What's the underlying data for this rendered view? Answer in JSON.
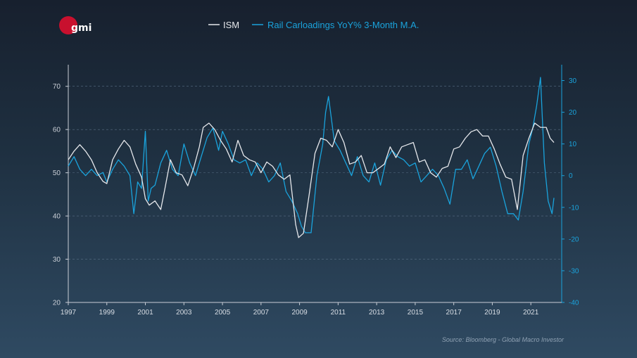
{
  "logo": {
    "text": "gmi",
    "color": "#c8102e"
  },
  "source": "Source: Bloomberg - Global Macro Investor",
  "colors": {
    "ism": "#e6e8ec",
    "rail": "#1aa3dc",
    "axis_left": "#c9ced6",
    "axis_right": "#1aa3dc",
    "grid": "#5a6f85"
  },
  "chart_data": {
    "type": "line",
    "title": "",
    "legend": [
      "ISM",
      "Rail Carloadings YoY% 3-Month M.A."
    ],
    "legend_position": "top-center",
    "x_range": [
      1997,
      2022.6
    ],
    "x_ticks": [
      "1997",
      "1999",
      "2001",
      "2003",
      "2005",
      "2007",
      "2009",
      "2011",
      "2013",
      "2015",
      "2017",
      "2019",
      "2021"
    ],
    "y_left": {
      "range": [
        20,
        75
      ],
      "ticks": [
        "20",
        "30",
        "40",
        "50",
        "60",
        "70"
      ]
    },
    "y_right": {
      "range": [
        -40,
        35
      ],
      "ticks": [
        "-40",
        "-30",
        "-20",
        "-10",
        "0",
        "10",
        "20",
        "30"
      ]
    },
    "grid": "horizontal dashed at left-axis ticks",
    "series": [
      {
        "name": "ISM",
        "axis": "left",
        "x": [
          1997.0,
          1997.3,
          1997.6,
          1997.9,
          1998.2,
          1998.5,
          1998.8,
          1999.0,
          1999.3,
          1999.6,
          1999.9,
          2000.2,
          2000.5,
          2000.8,
          2001.0,
          2001.2,
          2001.5,
          2001.8,
          2002.0,
          2002.3,
          2002.6,
          2002.9,
          2003.2,
          2003.5,
          2003.8,
          2004.0,
          2004.3,
          2004.6,
          2004.9,
          2005.2,
          2005.5,
          2005.8,
          2006.1,
          2006.4,
          2006.7,
          2007.0,
          2007.3,
          2007.6,
          2007.9,
          2008.2,
          2008.5,
          2008.8,
          2008.95,
          2009.2,
          2009.5,
          2009.8,
          2010.1,
          2010.4,
          2010.7,
          2011.0,
          2011.3,
          2011.6,
          2011.9,
          2012.2,
          2012.5,
          2012.8,
          2013.1,
          2013.4,
          2013.7,
          2014.0,
          2014.3,
          2014.6,
          2014.9,
          2015.2,
          2015.5,
          2015.8,
          2016.1,
          2016.4,
          2016.7,
          2017.0,
          2017.3,
          2017.6,
          2017.9,
          2018.2,
          2018.5,
          2018.8,
          2019.1,
          2019.4,
          2019.7,
          2020.0,
          2020.3,
          2020.6,
          2020.9,
          2021.2,
          2021.5,
          2021.8,
          2022.0,
          2022.2
        ],
        "values": [
          53,
          55,
          56.5,
          55,
          53,
          50,
          48,
          47.5,
          53,
          55.5,
          57.5,
          56,
          52,
          49,
          44,
          42.5,
          43.5,
          41.5,
          46,
          53,
          50,
          49.5,
          47,
          51,
          56,
          60.5,
          61.5,
          60,
          57.5,
          55.5,
          52.5,
          57.5,
          54,
          53,
          52.5,
          50,
          52.5,
          51.5,
          49.5,
          48.5,
          49.5,
          38,
          35,
          36,
          45,
          54.5,
          58,
          57.5,
          56,
          60,
          57,
          52,
          52.5,
          54,
          50,
          50,
          51,
          52,
          56,
          53.5,
          56,
          56.5,
          57,
          52.5,
          53,
          50,
          49,
          51,
          51.5,
          55.5,
          56,
          58,
          59.5,
          60,
          58.5,
          58.5,
          55.5,
          52,
          49,
          48.5,
          41.5,
          54,
          58,
          61.5,
          60.5,
          60.5,
          58,
          57
        ]
      },
      {
        "name": "Rail Carloadings YoY% 3-Month M.A.",
        "axis": "right",
        "x": [
          1997.0,
          1997.3,
          1997.6,
          1997.9,
          1998.2,
          1998.5,
          1998.8,
          1999.0,
          1999.3,
          1999.6,
          1999.9,
          2000.2,
          2000.4,
          2000.6,
          2000.8,
          2001.0,
          2001.15,
          2001.3,
          2001.5,
          2001.8,
          2002.1,
          2002.4,
          2002.7,
          2003.0,
          2003.3,
          2003.6,
          2003.9,
          2004.2,
          2004.5,
          2004.8,
          2005.0,
          2005.3,
          2005.6,
          2005.9,
          2006.2,
          2006.5,
          2006.8,
          2007.1,
          2007.4,
          2007.7,
          2008.0,
          2008.3,
          2008.6,
          2008.9,
          2009.1,
          2009.3,
          2009.6,
          2009.9,
          2010.2,
          2010.35,
          2010.5,
          2010.8,
          2011.1,
          2011.4,
          2011.7,
          2012.0,
          2012.3,
          2012.6,
          2012.9,
          2013.2,
          2013.5,
          2013.8,
          2014.1,
          2014.4,
          2014.7,
          2015.0,
          2015.3,
          2015.6,
          2015.9,
          2016.2,
          2016.5,
          2016.8,
          2017.1,
          2017.4,
          2017.7,
          2018.0,
          2018.3,
          2018.6,
          2018.9,
          2019.2,
          2019.5,
          2019.8,
          2020.1,
          2020.35,
          2020.6,
          2020.9,
          2021.1,
          2021.3,
          2021.5,
          2021.7,
          2021.9,
          2022.1,
          2022.2
        ],
        "values": [
          3,
          6,
          2,
          0,
          2,
          0,
          1,
          -2,
          2,
          5,
          3,
          0,
          -12,
          -2,
          -4,
          14,
          -8,
          -4,
          -3,
          4,
          8,
          2,
          0,
          10,
          4,
          0,
          6,
          12,
          15,
          8,
          14,
          10,
          5,
          4,
          5,
          0,
          4,
          2,
          -2,
          0,
          4,
          -5,
          -8,
          -12,
          -16,
          -18,
          -18,
          0,
          10,
          20,
          25,
          11,
          8,
          4,
          0,
          6,
          0,
          -2,
          4,
          -3,
          5,
          8,
          6,
          5,
          3,
          4,
          -2,
          0,
          2,
          0,
          -4,
          -9,
          2,
          2,
          5,
          -1,
          3,
          7,
          9,
          3,
          -5,
          -12,
          -12,
          -14,
          -5,
          10,
          15,
          22,
          31,
          4,
          -8,
          -12,
          -7
        ]
      }
    ]
  }
}
